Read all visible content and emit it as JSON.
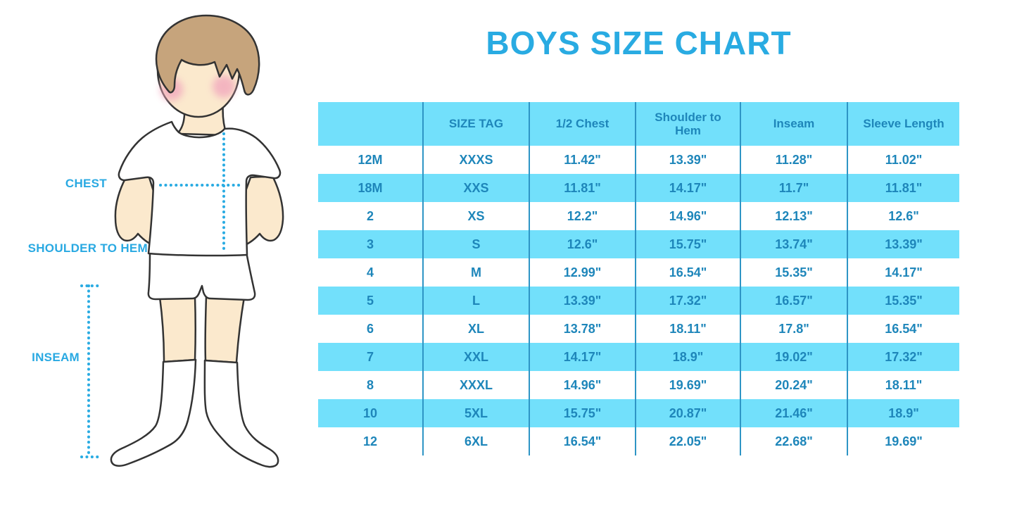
{
  "title": "BOYS SIZE CHART",
  "figure": {
    "labels": {
      "chest": "CHEST",
      "shoulder_to_hem": "SHOULDER TO HEM",
      "inseam": "INSEAM"
    },
    "illustration": "boy-front-white-tshirt-shorts-socks"
  },
  "colors": {
    "title_blue": "#29ABE2",
    "label_blue": "#29A9E2",
    "table_band_cyan": "#72E0FB",
    "table_text_blue": "#1E86BA",
    "table_divider_blue": "#2E95C5",
    "skin": "#FBE9CD",
    "hair": "#C6A47C",
    "cheek_pink": "#F2A9BE"
  },
  "chart_data": {
    "type": "table",
    "title": "BOYS SIZE CHART",
    "units": "inches",
    "columns": [
      "",
      "SIZE TAG",
      "1/2 Chest",
      "Shoulder to Hem",
      "Inseam",
      "Sleeve Length"
    ],
    "rows": [
      [
        "12M",
        "XXXS",
        "11.42\"",
        "13.39\"",
        "11.28\"",
        "11.02\""
      ],
      [
        "18M",
        "XXS",
        "11.81\"",
        "14.17\"",
        "11.7\"",
        "11.81\""
      ],
      [
        "2",
        "XS",
        "12.2\"",
        "14.96\"",
        "12.13\"",
        "12.6\""
      ],
      [
        "3",
        "S",
        "12.6\"",
        "15.75\"",
        "13.74\"",
        "13.39\""
      ],
      [
        "4",
        "M",
        "12.99\"",
        "16.54\"",
        "15.35\"",
        "14.17\""
      ],
      [
        "5",
        "L",
        "13.39\"",
        "17.32\"",
        "16.57\"",
        "15.35\""
      ],
      [
        "6",
        "XL",
        "13.78\"",
        "18.11\"",
        "17.8\"",
        "16.54\""
      ],
      [
        "7",
        "XXL",
        "14.17\"",
        "18.9\"",
        "19.02\"",
        "17.32\""
      ],
      [
        "8",
        "XXXL",
        "14.96\"",
        "19.69\"",
        "20.24\"",
        "18.11\""
      ],
      [
        "10",
        "5XL",
        "15.75\"",
        "20.87\"",
        "21.46\"",
        "18.9\""
      ],
      [
        "12",
        "6XL",
        "16.54\"",
        "22.05\"",
        "22.68\"",
        "19.69\""
      ]
    ],
    "row_striping": "white / cyan alternating, header cyan",
    "legend_position": "none",
    "grid": "vertical dividers only"
  }
}
